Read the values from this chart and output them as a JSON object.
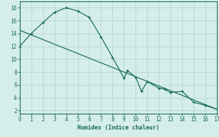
{
  "xlabel": "Humidex (Indice chaleur)",
  "background_color": "#d5eeea",
  "line_color": "#1a6b5e",
  "grid_color": "#b8d8d2",
  "curve1_x": [
    0,
    1,
    2,
    3,
    4,
    5,
    6,
    7,
    8,
    9,
    9.3,
    10,
    10.5,
    11,
    12,
    12.5,
    13,
    14,
    15,
    16,
    17
  ],
  "curve1_y": [
    12.0,
    14.0,
    15.7,
    17.3,
    18.0,
    17.5,
    16.5,
    13.5,
    10.3,
    7.0,
    8.2,
    7.2,
    5.0,
    6.5,
    5.5,
    5.3,
    4.8,
    5.0,
    3.3,
    2.8,
    2.2
  ],
  "curve2_x": [
    0,
    17
  ],
  "curve2_y": [
    14.5,
    2.2
  ],
  "xlim": [
    0,
    17
  ],
  "ylim": [
    1.5,
    19
  ],
  "yticks": [
    2,
    4,
    6,
    8,
    10,
    12,
    14,
    16,
    18
  ],
  "xticks": [
    0,
    1,
    2,
    3,
    4,
    5,
    6,
    7,
    8,
    9,
    10,
    11,
    12,
    13,
    14,
    15,
    16,
    17
  ]
}
